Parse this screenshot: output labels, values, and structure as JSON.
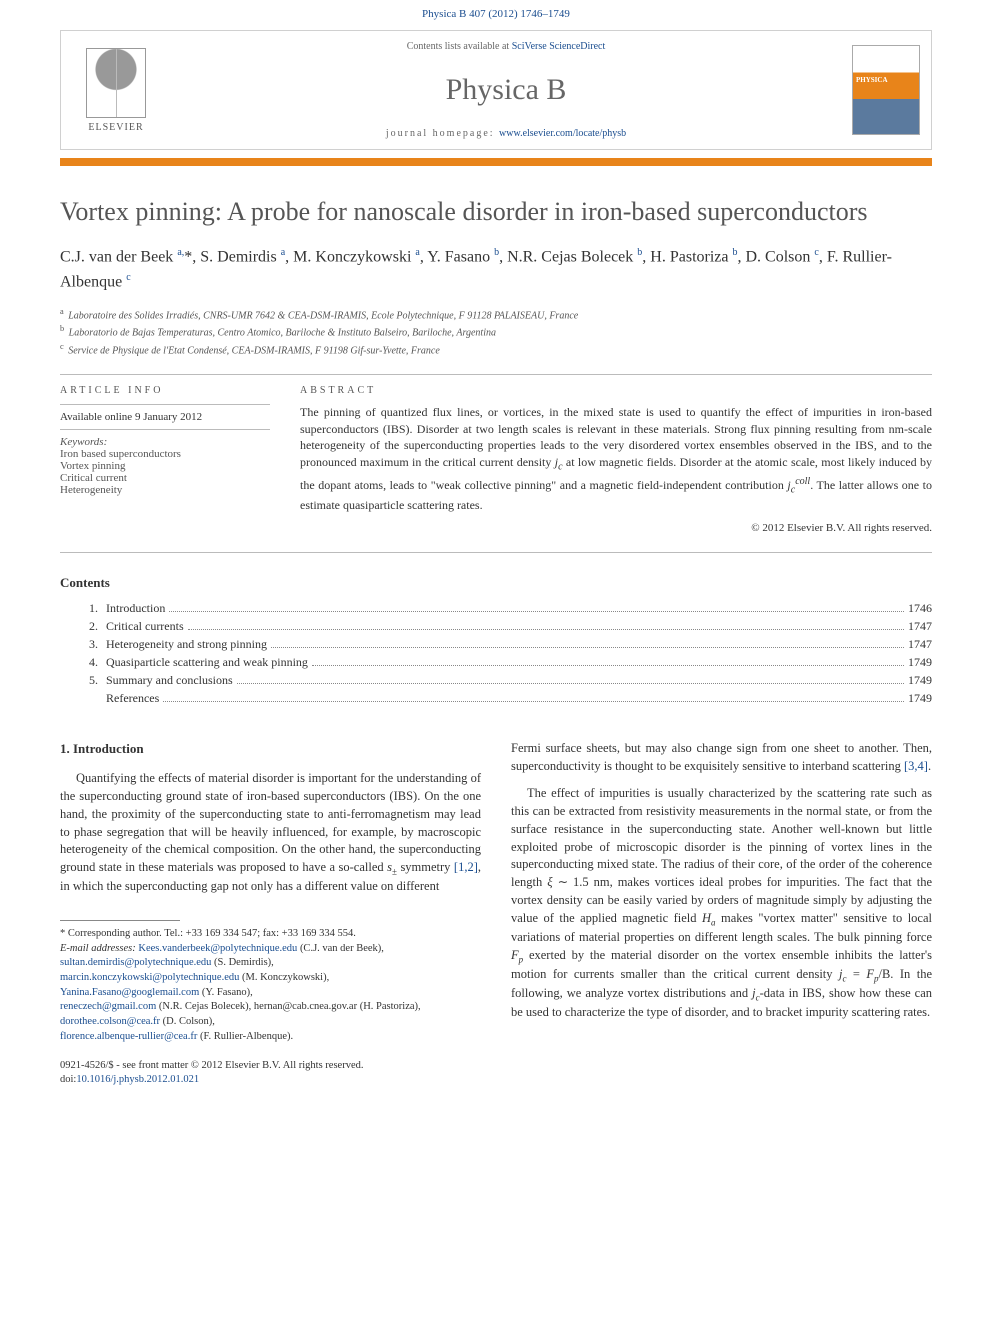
{
  "citation": "Physica B 407 (2012) 1746–1749",
  "header": {
    "contents_prefix": "Contents lists available at ",
    "contents_link": "SciVerse ScienceDirect",
    "journal": "Physica B",
    "homepage_prefix": "journal homepage: ",
    "homepage_link": "www.elsevier.com/locate/physb",
    "publisher": "ELSEVIER"
  },
  "title": "Vortex pinning: A probe for nanoscale disorder in iron-based superconductors",
  "authors_html": "C.J. van der Beek <sup>a,</sup><span class='star'>*</span>, S. Demirdis <sup>a</sup>, M. Konczykowski <sup>a</sup>, Y. Fasano <sup>b</sup>, N.R. Cejas Bolecek <sup>b</sup>, H. Pastoriza <sup>b</sup>, D. Colson <sup>c</sup>, F. Rullier-Albenque <sup>c</sup>",
  "affiliations": [
    {
      "sup": "a",
      "text": "Laboratoire des Solides Irradiés, CNRS-UMR 7642 & CEA-DSM-IRAMIS, Ecole Polytechnique, F 91128 PALAISEAU, France"
    },
    {
      "sup": "b",
      "text": "Laboratorio de Bajas Temperaturas, Centro Atomico, Bariloche & Instituto Balseiro, Bariloche, Argentina"
    },
    {
      "sup": "c",
      "text": "Service de Physique de l'Etat Condensé, CEA-DSM-IRAMIS, F 91198 Gif-sur-Yvette, France"
    }
  ],
  "article_info": {
    "label": "ARTICLE INFO",
    "available": "Available online 9 January 2012",
    "keywords_label": "Keywords:",
    "keywords": [
      "Iron based superconductors",
      "Vortex pinning",
      "Critical current",
      "Heterogeneity"
    ]
  },
  "abstract": {
    "label": "ABSTRACT",
    "text": "The pinning of quantized flux lines, or vortices, in the mixed state is used to quantify the effect of impurities in iron-based superconductors (IBS). Disorder at two length scales is relevant in these materials. Strong flux pinning resulting from nm-scale heterogeneity of the superconducting properties leads to the very disordered vortex ensembles observed in the IBS, and to the pronounced maximum in the critical current density jc at low magnetic fields. Disorder at the atomic scale, most likely induced by the dopant atoms, leads to \"weak collective pinning\" and a magnetic field-independent contribution jccoll. The latter allows one to estimate quasiparticle scattering rates.",
    "copyright": "© 2012 Elsevier B.V. All rights reserved."
  },
  "contents": {
    "heading": "Contents",
    "items": [
      {
        "num": "1.",
        "title": "Introduction",
        "page": "1746"
      },
      {
        "num": "2.",
        "title": "Critical currents",
        "page": "1747"
      },
      {
        "num": "3.",
        "title": "Heterogeneity and strong pinning",
        "page": "1747"
      },
      {
        "num": "4.",
        "title": "Quasiparticle scattering and weak pinning",
        "page": "1749"
      },
      {
        "num": "5.",
        "title": "Summary and conclusions",
        "page": "1749"
      },
      {
        "num": "",
        "title": "References",
        "page": "1749"
      }
    ]
  },
  "body": {
    "intro_heading": "1. Introduction",
    "col1_p1": "Quantifying the effects of material disorder is important for the understanding of the superconducting ground state of iron-based superconductors (IBS). On the one hand, the proximity of the superconducting state to anti-ferromagnetism may lead to phase segregation that will be heavily influenced, for example, by macroscopic heterogeneity of the chemical composition. On the other hand, the superconducting ground state in these materials was proposed to have a so-called s± symmetry [1,2], in which the superconducting gap not only has a different value on different",
    "col2_p1": "Fermi surface sheets, but may also change sign from one sheet to another. Then, superconductivity is thought to be exquisitely sensitive to interband scattering [3,4].",
    "col2_p2": "The effect of impurities is usually characterized by the scattering rate such as this can be extracted from resistivity measurements in the normal state, or from the surface resistance in the superconducting state. Another well-known but little exploited probe of microscopic disorder is the pinning of vortex lines in the superconducting mixed state. The radius of their core, of the order of the coherence length ξ ∼ 1.5 nm, makes vortices ideal probes for impurities. The fact that the vortex density can be easily varied by orders of magnitude simply by adjusting the value of the applied magnetic field Ha makes \"vortex matter\" sensitive to local variations of material properties on different length scales. The bulk pinning force Fp exerted by the material disorder on the vortex ensemble inhibits the latter's motion for currents smaller than the critical current density jc = Fp/B. In the following, we analyze vortex distributions and jc-data in IBS, show how these can be used to characterize the type of disorder, and to bracket impurity scattering rates."
  },
  "footnotes": {
    "corresponding": "* Corresponding author. Tel.: +33 169 334 547; fax: +33 169 334 554.",
    "emails_label": "E-mail addresses:",
    "emails": [
      {
        "addr": "Kees.vanderbeek@polytechnique.edu",
        "who": "(C.J. van der Beek),"
      },
      {
        "addr": "sultan.demirdis@polytechnique.edu",
        "who": "(S. Demirdis),"
      },
      {
        "addr": "marcin.konczykowski@polytechnique.edu",
        "who": "(M. Konczykowski),"
      },
      {
        "addr": "Yanina.Fasano@googlemail.com",
        "who": "(Y. Fasano),"
      },
      {
        "addr": "reneczech@gmail.com",
        "who": "(N.R. Cejas Bolecek), hernan@cab.cnea.gov.ar (H. Pastoriza),"
      },
      {
        "addr": "dorothee.colson@cea.fr",
        "who": "(D. Colson),"
      },
      {
        "addr": "florence.albenque-rullier@cea.fr",
        "who": "(F. Rullier-Albenque)."
      }
    ]
  },
  "bottom": {
    "issn": "0921-4526/$ - see front matter © 2012 Elsevier B.V. All rights reserved.",
    "doi_label": "doi:",
    "doi": "10.1016/j.physb.2012.01.021"
  },
  "colors": {
    "accent_orange": "#e8841a",
    "link_blue": "#1a4d8f",
    "rule_gray": "#bbbbbb",
    "text_gray": "#555555"
  }
}
